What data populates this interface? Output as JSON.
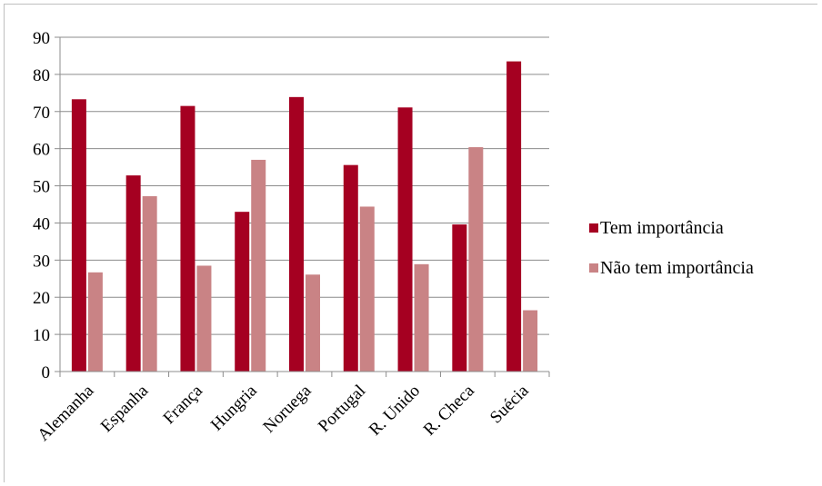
{
  "chart_data": {
    "type": "bar",
    "categories": [
      "Alemanha",
      "Espanha",
      "França",
      "Hungria",
      "Noruega",
      "Portugal",
      "R. Unido",
      "R. Checa",
      "Suécia"
    ],
    "series": [
      {
        "name": "Tem importância",
        "color": "#a50021",
        "values": [
          73.3,
          52.8,
          71.5,
          43.0,
          73.9,
          55.6,
          71.1,
          39.6,
          83.5
        ]
      },
      {
        "name": "Não tem importância",
        "color": "#c98385",
        "values": [
          26.7,
          47.2,
          28.5,
          57.0,
          26.1,
          44.4,
          28.9,
          60.4,
          16.5
        ]
      }
    ],
    "yticks": [
      0,
      10,
      20,
      30,
      40,
      50,
      60,
      70,
      80,
      90
    ],
    "ylim": [
      0,
      90
    ],
    "grid": true,
    "legend_position": "right"
  }
}
